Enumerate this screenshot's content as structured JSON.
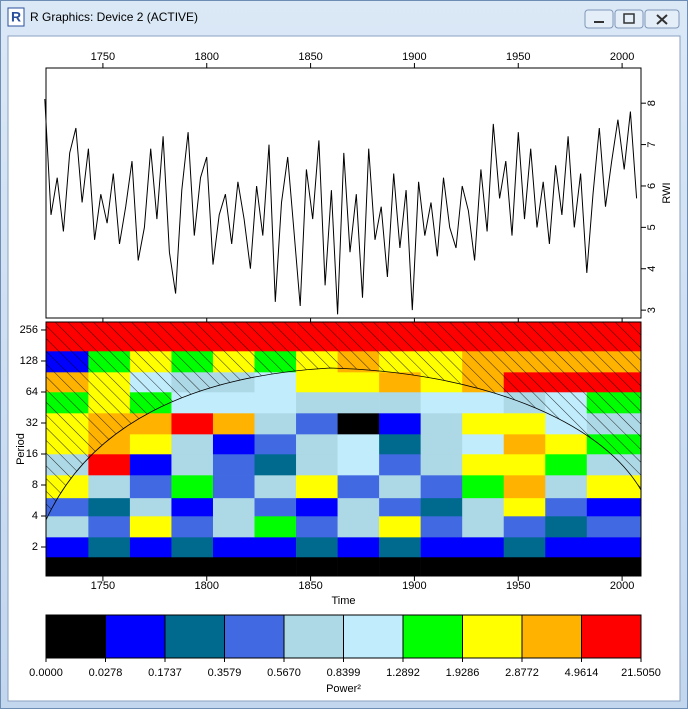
{
  "window": {
    "title": "R Graphics: Device 2 (ACTIVE)"
  },
  "chart_data": [
    {
      "type": "line",
      "ylabel": "RWI",
      "color": "#000000",
      "xaxis_position": "top",
      "yaxis_position": "right",
      "xlim": [
        1722.6,
        2009.1
      ],
      "xticks": [
        1750,
        1800,
        1850,
        1900,
        1950,
        2000
      ],
      "ylim": [
        2.81,
        8.85
      ],
      "yticks": [
        3,
        4,
        5,
        6,
        7,
        8
      ],
      "x": [
        1722,
        1725,
        1728,
        1731,
        1734,
        1737,
        1740,
        1743,
        1746,
        1749,
        1752,
        1755,
        1758,
        1761,
        1764,
        1767,
        1770,
        1773,
        1776,
        1779,
        1782,
        1785,
        1788,
        1791,
        1794,
        1797,
        1800,
        1803,
        1806,
        1809,
        1812,
        1815,
        1818,
        1821,
        1824,
        1827,
        1830,
        1833,
        1836,
        1839,
        1842,
        1845,
        1848,
        1851,
        1854,
        1857,
        1860,
        1863,
        1866,
        1869,
        1872,
        1875,
        1878,
        1881,
        1884,
        1887,
        1890,
        1893,
        1896,
        1899,
        1902,
        1905,
        1908,
        1911,
        1914,
        1917,
        1920,
        1923,
        1926,
        1929,
        1932,
        1935,
        1938,
        1941,
        1944,
        1947,
        1950,
        1953,
        1956,
        1959,
        1962,
        1965,
        1968,
        1971,
        1974,
        1977,
        1980,
        1983,
        1986,
        1989,
        1992,
        1995,
        1998,
        2001,
        2004,
        2007
      ],
      "values": [
        8.1,
        5.3,
        6.2,
        4.9,
        6.8,
        7.4,
        5.6,
        6.9,
        4.7,
        5.8,
        5.1,
        6.3,
        4.6,
        5.5,
        6.6,
        4.2,
        5.0,
        6.9,
        5.2,
        7.2,
        4.4,
        3.4,
        5.9,
        7.3,
        4.8,
        6.2,
        6.7,
        4.1,
        5.3,
        5.8,
        4.6,
        6.1,
        5.2,
        4.0,
        6.0,
        4.8,
        7.0,
        3.2,
        5.6,
        6.7,
        4.9,
        3.1,
        6.4,
        5.2,
        7.1,
        3.6,
        5.9,
        2.9,
        6.8,
        4.4,
        5.8,
        3.3,
        6.9,
        4.7,
        5.5,
        3.8,
        6.3,
        4.5,
        5.9,
        3.0,
        6.1,
        4.8,
        5.6,
        4.3,
        6.2,
        5.0,
        4.5,
        6.0,
        5.4,
        4.2,
        6.4,
        4.9,
        7.5,
        5.7,
        6.6,
        4.8,
        7.3,
        5.2,
        6.9,
        5.0,
        6.1,
        4.6,
        6.5,
        5.3,
        7.2,
        5.0,
        6.3,
        3.9,
        5.8,
        7.4,
        5.5,
        6.6,
        7.6,
        6.4,
        7.8,
        5.7
      ]
    },
    {
      "type": "heatmap",
      "xlabel": "Time",
      "ylabel": "Period",
      "log_y": true,
      "xlim": [
        1722.6,
        2009.1
      ],
      "xticks": [
        1750,
        1800,
        1850,
        1900,
        1950,
        2000
      ],
      "ylim": [
        1.046,
        306
      ],
      "yticks": [
        2,
        4,
        8,
        16,
        32,
        64,
        128,
        256
      ],
      "xbins": [
        1722.6,
        1743,
        1763,
        1783,
        1803,
        1823,
        1843,
        1863,
        1883,
        1903,
        1923,
        1943,
        1963,
        1983,
        2009.1
      ],
      "ybins": [
        1.046,
        1.6,
        2.5,
        4,
        6,
        10,
        16,
        25,
        40,
        64,
        100,
        160,
        306
      ],
      "values": [
        [
          0.01,
          0.01,
          0.01,
          0.01,
          0.01,
          0.01,
          0.01,
          0.01,
          0.01,
          0.01,
          0.01,
          0.01,
          0.01,
          0.01
        ],
        [
          0.1,
          0.25,
          0.1,
          0.25,
          0.1,
          0.1,
          0.25,
          0.1,
          0.25,
          0.1,
          0.1,
          0.25,
          0.1,
          0.1
        ],
        [
          0.7,
          0.45,
          2.4,
          0.45,
          0.7,
          1.6,
          0.45,
          0.7,
          2.4,
          0.45,
          0.7,
          0.45,
          0.25,
          0.45
        ],
        [
          0.45,
          0.25,
          0.7,
          0.1,
          0.7,
          0.45,
          0.1,
          0.7,
          0.45,
          0.25,
          0.7,
          2.4,
          0.45,
          0.1
        ],
        [
          2.4,
          0.7,
          0.45,
          1.6,
          0.45,
          0.7,
          2.4,
          0.45,
          0.7,
          0.45,
          1.6,
          3.8,
          0.7,
          2.4
        ],
        [
          0.7,
          8,
          0.1,
          0.7,
          0.45,
          0.25,
          0.7,
          1.1,
          0.45,
          0.7,
          2.4,
          2.4,
          1.6,
          0.7
        ],
        [
          2.4,
          3.8,
          2.4,
          0.7,
          0.1,
          0.45,
          0.7,
          1.1,
          0.25,
          0.7,
          1.1,
          3.8,
          2.4,
          1.6
        ],
        [
          2.4,
          3.8,
          3.8,
          8,
          3.8,
          0.7,
          0.45,
          0.01,
          0.1,
          0.7,
          2.4,
          2.4,
          1.1,
          0.7
        ],
        [
          1.6,
          2.4,
          1.6,
          1.1,
          1.1,
          1.1,
          0.7,
          0.7,
          0.7,
          1.1,
          1.1,
          0.7,
          1.1,
          1.6
        ],
        [
          3.8,
          2.4,
          1.1,
          0.7,
          0.7,
          1.1,
          2.4,
          2.4,
          3.8,
          2.4,
          3.8,
          8,
          8,
          8
        ],
        [
          0.1,
          1.6,
          2.4,
          1.6,
          2.4,
          1.6,
          2.4,
          3.8,
          2.4,
          2.4,
          3.8,
          3.8,
          3.8,
          3.8
        ],
        [
          8,
          8,
          8,
          8,
          8,
          8,
          8,
          8,
          8,
          8,
          8,
          8,
          8,
          8
        ]
      ],
      "colorbar": {
        "label": "Power²",
        "colors": [
          "#000000",
          "#0000ff",
          "#006a8e",
          "#4169e1",
          "#add8e6",
          "#c0ecfc",
          "#00ff00",
          "#ffff00",
          "#ffb300",
          "#ff0000"
        ],
        "breaks": [
          {
            "value": 0,
            "label": "0.0000"
          },
          {
            "value": 0.0278,
            "label": "0.0278"
          },
          {
            "value": 0.1737,
            "label": "0.1737"
          },
          {
            "value": 0.3579,
            "label": "0.3579"
          },
          {
            "value": 0.567,
            "label": "0.5670"
          },
          {
            "value": 0.8399,
            "label": "0.8399"
          },
          {
            "value": 1.2892,
            "label": "1.2892"
          },
          {
            "value": 1.9286,
            "label": "1.9286"
          },
          {
            "value": 2.8772,
            "label": "2.8772"
          },
          {
            "value": 4.9614,
            "label": "4.9614"
          },
          {
            "value": 21.505,
            "label": "21.5050"
          }
        ]
      }
    }
  ]
}
